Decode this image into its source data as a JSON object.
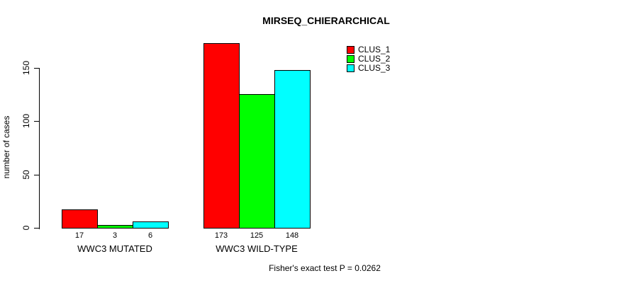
{
  "title": "MIRSEQ_CHIERARCHICAL",
  "footnote": "Fisher's exact test P = 0.0262",
  "chart_data": {
    "type": "bar",
    "title": "MIRSEQ_CHIERARCHICAL",
    "ylabel": "number of cases",
    "xlabel": "",
    "categories": [
      "WWC3 MUTATED",
      "WWC3 WILD-TYPE"
    ],
    "series": [
      {
        "name": "CLUS_1",
        "color": "#FF0000",
        "values": [
          17,
          173
        ]
      },
      {
        "name": "CLUS_2",
        "color": "#00FF00",
        "values": [
          3,
          125
        ]
      },
      {
        "name": "CLUS_3",
        "color": "#00FFFF",
        "values": [
          6,
          148
        ]
      }
    ],
    "bar_value_labels_shown": true,
    "yticks": [
      0,
      50,
      100,
      150
    ],
    "ylim": [
      0,
      180
    ],
    "grid": false,
    "legend": {
      "position": "top-right",
      "entries": [
        "CLUS_1",
        "CLUS_2",
        "CLUS_3"
      ]
    },
    "annotation": "Fisher's exact test P = 0.0262"
  }
}
